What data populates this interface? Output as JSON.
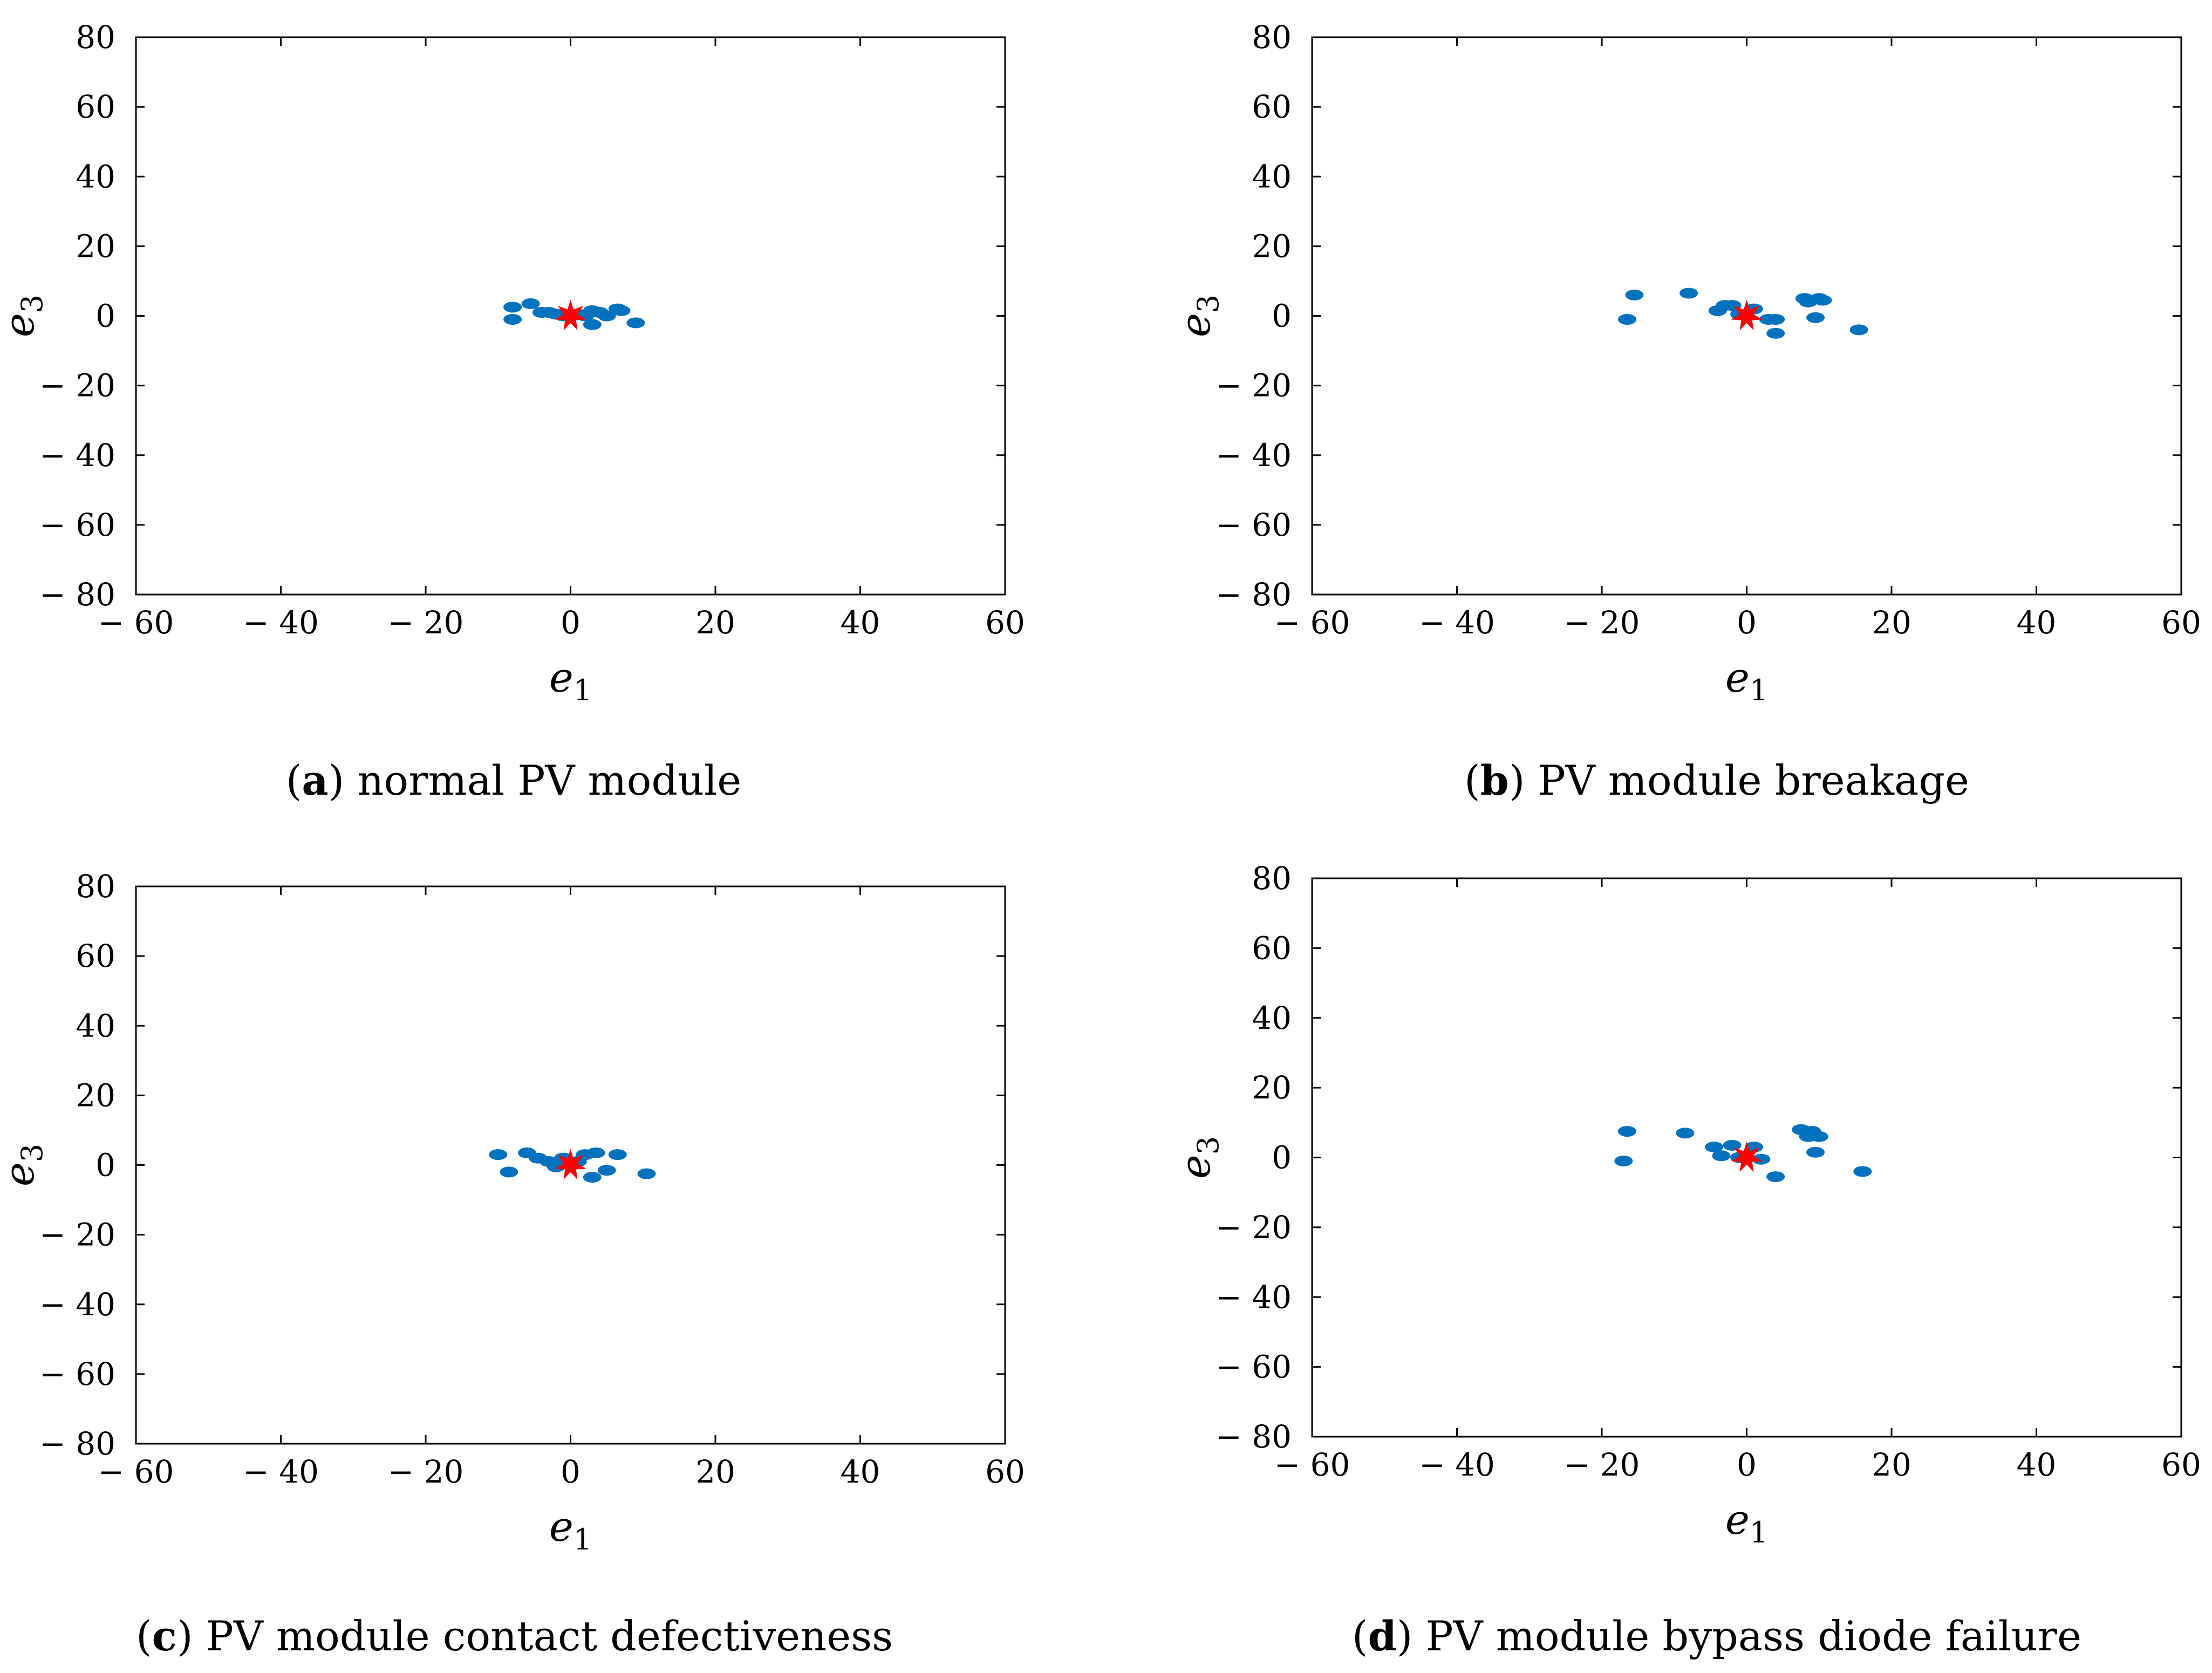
{
  "colors": {
    "scatter": "#0072BD",
    "center": "#FF0000",
    "axis": "#000000"
  },
  "chart_data": [
    {
      "type": "scatter",
      "panel_letter": "a",
      "caption": "normal PV module",
      "xlabel": "e1",
      "ylabel": "e3",
      "xlim": [
        -60,
        60
      ],
      "ylim": [
        -80,
        80
      ],
      "xticks": [
        -60,
        -40,
        -20,
        0,
        20,
        40,
        60
      ],
      "yticks": [
        -80,
        -60,
        -40,
        -20,
        0,
        20,
        40,
        60,
        80
      ],
      "xtick_labels": [
        "− 60",
        "− 40",
        "− 20",
        "0",
        "20",
        "40",
        "60"
      ],
      "ytick_labels": [
        "− 80",
        "− 60",
        "− 40",
        "− 20",
        "0",
        "20",
        "40",
        "60",
        "80"
      ],
      "grid": false,
      "series": [
        {
          "name": "samples",
          "color": "#0072BD",
          "points": [
            [
              -8,
              2.5
            ],
            [
              -8,
              -1
            ],
            [
              -5.5,
              3.5
            ],
            [
              -4,
              1
            ],
            [
              -3,
              1
            ],
            [
              -2,
              0.5
            ],
            [
              -1,
              0
            ],
            [
              1,
              0.5
            ],
            [
              2,
              0
            ],
            [
              3,
              1.5
            ],
            [
              3,
              -2.5
            ],
            [
              4,
              1
            ],
            [
              5,
              0
            ],
            [
              6.5,
              2
            ],
            [
              7,
              1.5
            ],
            [
              9,
              -2
            ]
          ]
        },
        {
          "name": "center",
          "color": "#FF0000",
          "marker": "star",
          "points": [
            [
              0,
              0
            ]
          ]
        }
      ]
    },
    {
      "type": "scatter",
      "panel_letter": "b",
      "caption": "PV module breakage",
      "xlabel": "e1",
      "ylabel": "e3",
      "xlim": [
        -60,
        60
      ],
      "ylim": [
        -80,
        80
      ],
      "xticks": [
        -60,
        -40,
        -20,
        0,
        20,
        40,
        60
      ],
      "yticks": [
        -80,
        -60,
        -40,
        -20,
        0,
        20,
        40,
        60,
        80
      ],
      "xtick_labels": [
        "− 60",
        "− 40",
        "− 20",
        "0",
        "20",
        "40",
        "60"
      ],
      "ytick_labels": [
        "− 80",
        "− 60",
        "− 40",
        "− 20",
        "0",
        "20",
        "40",
        "60",
        "80"
      ],
      "grid": false,
      "series": [
        {
          "name": "samples",
          "color": "#0072BD",
          "points": [
            [
              -16.5,
              -1
            ],
            [
              -15.5,
              6
            ],
            [
              -8,
              6.5
            ],
            [
              -4,
              1.5
            ],
            [
              -3,
              3
            ],
            [
              -2,
              3
            ],
            [
              -1,
              0.5
            ],
            [
              1,
              2
            ],
            [
              3,
              -1
            ],
            [
              4,
              -1
            ],
            [
              4,
              -5
            ],
            [
              8,
              5
            ],
            [
              8.5,
              4
            ],
            [
              9.5,
              -0.5
            ],
            [
              10,
              5
            ],
            [
              10.5,
              4.5
            ],
            [
              15.5,
              -4
            ]
          ]
        },
        {
          "name": "center",
          "color": "#FF0000",
          "marker": "star",
          "points": [
            [
              0,
              0
            ]
          ]
        }
      ]
    },
    {
      "type": "scatter",
      "panel_letter": "c",
      "caption": "PV module contact defectiveness",
      "xlabel": "e1",
      "ylabel": "e3",
      "xlim": [
        -60,
        60
      ],
      "ylim": [
        -80,
        80
      ],
      "xticks": [
        -60,
        -40,
        -20,
        0,
        20,
        40,
        60
      ],
      "yticks": [
        -80,
        -60,
        -40,
        -20,
        0,
        20,
        40,
        60,
        80
      ],
      "xtick_labels": [
        "− 60",
        "− 40",
        "− 20",
        "0",
        "20",
        "40",
        "60"
      ],
      "ytick_labels": [
        "− 80",
        "− 60",
        "− 40",
        "− 20",
        "0",
        "20",
        "40",
        "60",
        "80"
      ],
      "grid": false,
      "series": [
        {
          "name": "samples",
          "color": "#0072BD",
          "points": [
            [
              -10,
              3
            ],
            [
              -8.5,
              -2
            ],
            [
              -6,
              3.5
            ],
            [
              -4.5,
              2
            ],
            [
              -3,
              1
            ],
            [
              -2,
              -0.5
            ],
            [
              -1,
              2
            ],
            [
              1,
              1
            ],
            [
              2,
              3
            ],
            [
              3,
              -3.5
            ],
            [
              3.5,
              3.5
            ],
            [
              5,
              -1.5
            ],
            [
              6.5,
              3
            ],
            [
              10.5,
              -2.5
            ]
          ]
        },
        {
          "name": "center",
          "color": "#FF0000",
          "marker": "star",
          "points": [
            [
              0,
              0
            ]
          ]
        }
      ]
    },
    {
      "type": "scatter",
      "panel_letter": "d",
      "caption": "PV module bypass diode failure",
      "xlabel": "e1",
      "ylabel": "e3",
      "xlim": [
        -60,
        60
      ],
      "ylim": [
        -80,
        80
      ],
      "xticks": [
        -60,
        -40,
        -20,
        0,
        20,
        40,
        60
      ],
      "yticks": [
        -80,
        -60,
        -40,
        -20,
        0,
        20,
        40,
        60,
        80
      ],
      "xtick_labels": [
        "− 60",
        "− 40",
        "− 20",
        "0",
        "20",
        "40",
        "60"
      ],
      "ytick_labels": [
        "− 80",
        "− 60",
        "− 40",
        "− 20",
        "0",
        "20",
        "40",
        "60",
        "80"
      ],
      "grid": false,
      "series": [
        {
          "name": "samples",
          "color": "#0072BD",
          "points": [
            [
              -17,
              -1
            ],
            [
              -16.5,
              7.5
            ],
            [
              -8.5,
              7
            ],
            [
              -4.5,
              3
            ],
            [
              -3.5,
              0.5
            ],
            [
              -2,
              3.5
            ],
            [
              -1,
              0
            ],
            [
              1,
              3
            ],
            [
              2,
              -0.5
            ],
            [
              4,
              -5.5
            ],
            [
              7.5,
              8
            ],
            [
              8.5,
              6
            ],
            [
              9,
              7.5
            ],
            [
              9.5,
              1.5
            ],
            [
              10,
              6
            ],
            [
              16,
              -4
            ]
          ]
        },
        {
          "name": "center",
          "color": "#FF0000",
          "marker": "star",
          "points": [
            [
              0,
              0
            ]
          ]
        }
      ]
    }
  ]
}
